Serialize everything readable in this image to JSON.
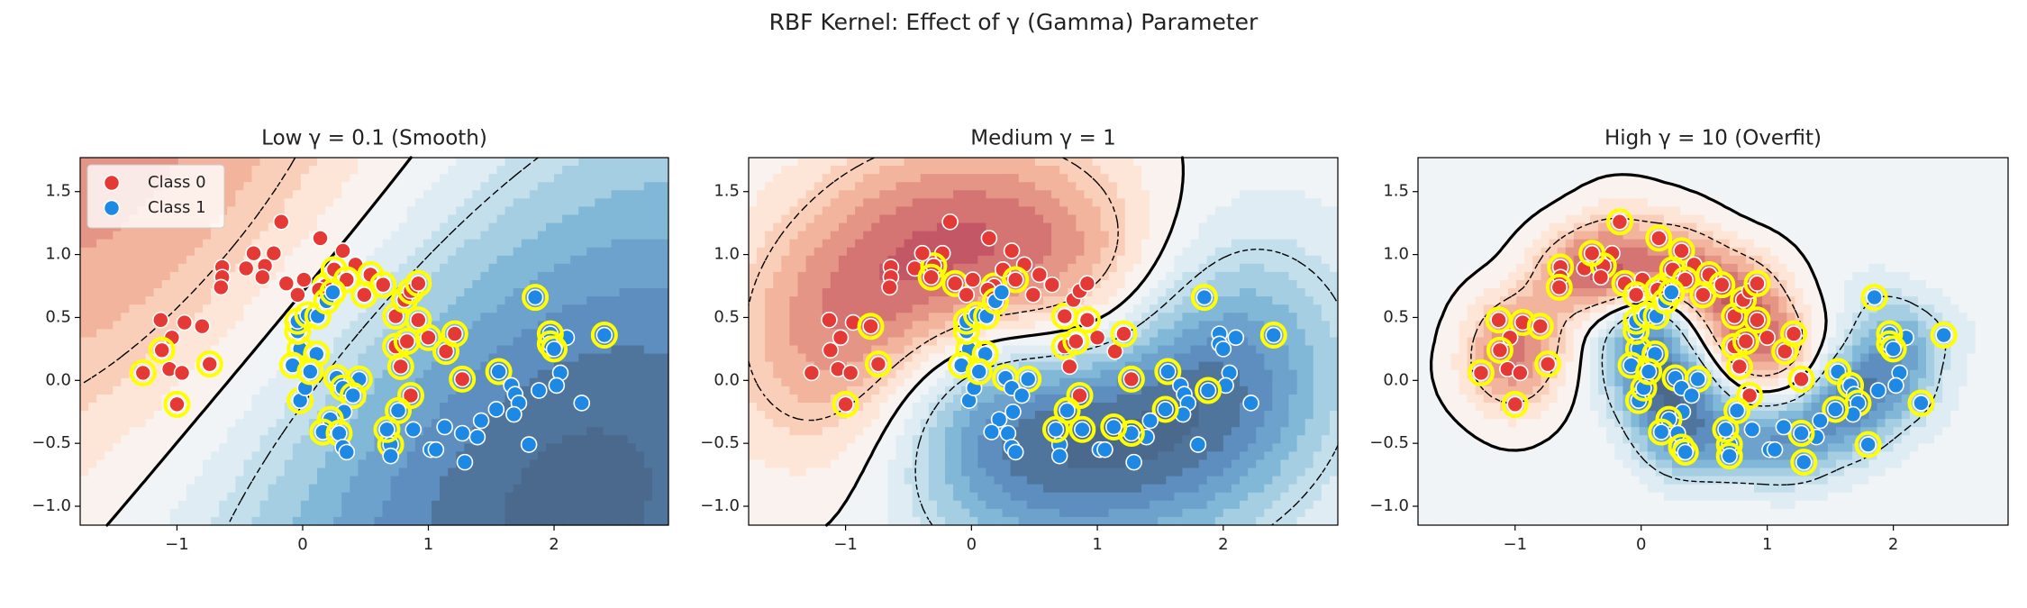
{
  "title": "RBF Kernel: Effect of γ (Gamma) Parameter",
  "chart_data": [
    {
      "type": "scatter",
      "title": "Low γ = 0.1 (Smooth)",
      "gamma": 0.1,
      "legend": "upper left",
      "xlim": [
        -1.77,
        2.91
      ],
      "ylim": [
        -1.15,
        1.77
      ],
      "xticks": [
        {
          "value": -1,
          "label": "−1"
        },
        {
          "value": 0,
          "label": "0"
        },
        {
          "value": 1,
          "label": "1"
        },
        {
          "value": 2,
          "label": "2"
        }
      ],
      "yticks": [
        {
          "value": -1.0,
          "label": "−1.0"
        },
        {
          "value": -0.5,
          "label": "−0.5"
        },
        {
          "value": 0.0,
          "label": "0.0"
        },
        {
          "value": 0.5,
          "label": "0.5"
        },
        {
          "value": 1.0,
          "label": "1.0"
        },
        {
          "value": 1.5,
          "label": "1.5"
        }
      ],
      "series": [
        {
          "name": "Class 0",
          "color": "#e53935",
          "x": [
            -0.17,
            0.14,
            -0.23,
            0.32,
            -0.64,
            -0.64,
            -0.65,
            -0.45,
            -0.3,
            -0.32,
            -0.13,
            0.01,
            0.18,
            0.25,
            0.42,
            0.54,
            0.49,
            0.35,
            0.13,
            -1.13,
            -0.94,
            -0.8,
            -1.04,
            -1.12,
            -1.06,
            -1.27,
            -0.96,
            -1.0,
            -0.74,
            0.74,
            0.81,
            0.86,
            0.74,
            0.83,
            1.0,
            1.14,
            1.21,
            0.86,
            1.27,
            0.78,
            -0.39,
            -0.04,
            0.92,
            0.92,
            0.64
          ],
          "values": [
            1.26,
            1.13,
            1.01,
            1.03,
            0.9,
            0.82,
            0.74,
            0.89,
            0.91,
            0.82,
            0.77,
            0.8,
            0.75,
            0.88,
            0.92,
            0.84,
            0.68,
            0.8,
            0.72,
            0.48,
            0.46,
            0.43,
            0.34,
            0.24,
            0.09,
            0.06,
            0.06,
            -0.19,
            0.13,
            0.51,
            0.64,
            0.71,
            0.27,
            0.31,
            0.34,
            0.23,
            0.37,
            -0.12,
            0.01,
            0.11,
            1.01,
            0.68,
            0.77,
            0.48,
            0.76
          ],
          "support": [
            false,
            false,
            false,
            false,
            false,
            false,
            false,
            false,
            false,
            false,
            false,
            false,
            true,
            true,
            false,
            true,
            true,
            true,
            false,
            false,
            false,
            false,
            false,
            true,
            false,
            true,
            false,
            true,
            true,
            true,
            true,
            true,
            true,
            true,
            true,
            true,
            true,
            true,
            true,
            true,
            false,
            false,
            true,
            true,
            true
          ]
        },
        {
          "name": "Class 1",
          "color": "#1e88e5",
          "x": [
            1.85,
            2.4,
            2.1,
            1.97,
            1.97,
            2.0,
            1.56,
            1.66,
            1.69,
            1.72,
            1.68,
            2.05,
            2.02,
            2.22,
            1.88,
            1.8,
            1.54,
            1.42,
            1.39,
            1.27,
            1.13,
            1.29,
            1.02,
            1.06,
            0.88,
            0.7,
            0.7,
            0.67,
            0.76,
            0.45,
            0.27,
            0.32,
            0.4,
            0.33,
            0.22,
            0.16,
            0.29,
            0.32,
            0.35,
            -0.02,
            0.02,
            -0.02,
            -0.04,
            -0.04,
            0.04,
            -0.08,
            0.12,
            0.19,
            0.24,
            0.11,
            0.06
          ],
          "values": [
            0.66,
            0.36,
            0.34,
            0.37,
            0.29,
            0.25,
            0.07,
            -0.04,
            -0.11,
            -0.18,
            -0.27,
            0.06,
            -0.04,
            -0.18,
            -0.08,
            -0.51,
            -0.23,
            -0.32,
            -0.45,
            -0.42,
            -0.37,
            -0.65,
            -0.55,
            -0.55,
            -0.39,
            -0.51,
            -0.6,
            -0.39,
            -0.24,
            0.01,
            0.02,
            -0.06,
            -0.12,
            -0.25,
            -0.31,
            -0.41,
            -0.42,
            -0.53,
            -0.57,
            -0.16,
            -0.06,
            0.25,
            0.39,
            0.47,
            0.52,
            0.12,
            0.51,
            0.63,
            0.7,
            0.21,
            0.07
          ],
          "support": [
            true,
            true,
            false,
            true,
            true,
            true,
            true,
            false,
            false,
            false,
            false,
            false,
            false,
            false,
            false,
            false,
            false,
            false,
            false,
            false,
            false,
            false,
            false,
            false,
            false,
            true,
            false,
            true,
            true,
            true,
            true,
            true,
            true,
            false,
            true,
            true,
            true,
            false,
            false,
            true,
            false,
            true,
            true,
            true,
            true,
            true,
            true,
            true,
            true,
            true,
            true
          ]
        }
      ]
    },
    {
      "type": "scatter",
      "title": "Medium γ = 1",
      "gamma": 1,
      "xlim": [
        -1.77,
        2.91
      ],
      "ylim": [
        -1.15,
        1.77
      ],
      "xticks": [
        {
          "value": -1,
          "label": "−1"
        },
        {
          "value": 0,
          "label": "0"
        },
        {
          "value": 1,
          "label": "1"
        },
        {
          "value": 2,
          "label": "2"
        }
      ],
      "yticks": [
        {
          "value": -1.0,
          "label": "−1.0"
        },
        {
          "value": -0.5,
          "label": "−0.5"
        },
        {
          "value": 0.0,
          "label": "0.0"
        },
        {
          "value": 0.5,
          "label": "0.5"
        },
        {
          "value": 1.0,
          "label": "1.0"
        },
        {
          "value": 1.5,
          "label": "1.5"
        }
      ],
      "series": [
        {
          "color": "#e53935",
          "x": [
            -0.17,
            0.14,
            -0.23,
            0.32,
            -0.64,
            -0.64,
            -0.65,
            -0.45,
            -0.3,
            -0.32,
            -0.13,
            0.01,
            0.18,
            0.25,
            0.42,
            0.54,
            0.49,
            0.35,
            0.13,
            -1.13,
            -0.94,
            -0.8,
            -1.04,
            -1.12,
            -1.06,
            -1.27,
            -0.96,
            -1.0,
            -0.74,
            0.74,
            0.81,
            0.86,
            0.74,
            0.83,
            1.0,
            1.14,
            1.21,
            0.86,
            1.27,
            0.78,
            -0.39,
            -0.04,
            0.92,
            0.92,
            0.64
          ],
          "values": [
            1.26,
            1.13,
            1.01,
            1.03,
            0.9,
            0.82,
            0.74,
            0.89,
            0.91,
            0.82,
            0.77,
            0.8,
            0.75,
            0.88,
            0.92,
            0.84,
            0.68,
            0.8,
            0.72,
            0.48,
            0.46,
            0.43,
            0.34,
            0.24,
            0.09,
            0.06,
            0.06,
            -0.19,
            0.13,
            0.51,
            0.64,
            0.71,
            0.27,
            0.31,
            0.34,
            0.23,
            0.37,
            -0.12,
            0.01,
            0.11,
            1.01,
            0.68,
            0.77,
            0.48,
            0.76
          ],
          "support": [
            false,
            false,
            false,
            false,
            false,
            false,
            false,
            false,
            true,
            true,
            true,
            false,
            true,
            false,
            false,
            false,
            false,
            true,
            false,
            false,
            false,
            true,
            false,
            false,
            false,
            false,
            false,
            true,
            true,
            true,
            false,
            false,
            true,
            true,
            false,
            false,
            true,
            true,
            true,
            false,
            false,
            false,
            false,
            true,
            false
          ]
        },
        {
          "color": "#1e88e5",
          "x": [
            1.85,
            2.4,
            2.1,
            1.97,
            1.97,
            2.0,
            1.56,
            1.66,
            1.69,
            1.72,
            1.68,
            2.05,
            2.02,
            2.22,
            1.88,
            1.8,
            1.54,
            1.42,
            1.39,
            1.27,
            1.13,
            1.29,
            1.02,
            1.06,
            0.88,
            0.7,
            0.7,
            0.67,
            0.76,
            0.45,
            0.27,
            0.32,
            0.4,
            0.33,
            0.22,
            0.16,
            0.29,
            0.32,
            0.35,
            -0.02,
            0.02,
            -0.02,
            -0.04,
            -0.04,
            0.04,
            -0.08,
            0.12,
            0.19,
            0.24,
            0.11,
            0.06
          ],
          "values": [
            0.66,
            0.36,
            0.34,
            0.37,
            0.29,
            0.25,
            0.07,
            -0.04,
            -0.11,
            -0.18,
            -0.27,
            0.06,
            -0.04,
            -0.18,
            -0.08,
            -0.51,
            -0.23,
            -0.32,
            -0.45,
            -0.42,
            -0.37,
            -0.65,
            -0.55,
            -0.55,
            -0.39,
            -0.51,
            -0.6,
            -0.39,
            -0.24,
            0.01,
            0.02,
            -0.06,
            -0.12,
            -0.25,
            -0.31,
            -0.41,
            -0.42,
            -0.53,
            -0.57,
            -0.16,
            -0.06,
            0.25,
            0.39,
            0.47,
            0.52,
            0.12,
            0.51,
            0.63,
            0.7,
            0.21,
            0.07
          ],
          "support": [
            true,
            true,
            false,
            false,
            false,
            false,
            true,
            false,
            false,
            false,
            false,
            false,
            false,
            false,
            true,
            false,
            true,
            false,
            false,
            true,
            true,
            false,
            false,
            false,
            true,
            false,
            false,
            true,
            true,
            true,
            true,
            false,
            false,
            false,
            false,
            false,
            false,
            false,
            false,
            false,
            false,
            true,
            true,
            true,
            true,
            true,
            true,
            true,
            false,
            true,
            true
          ]
        }
      ]
    },
    {
      "type": "scatter",
      "title": "High γ = 10 (Overfit)",
      "gamma": 10,
      "xlim": [
        -1.77,
        2.91
      ],
      "ylim": [
        -1.15,
        1.77
      ],
      "xticks": [
        {
          "value": -1,
          "label": "−1"
        },
        {
          "value": 0,
          "label": "0"
        },
        {
          "value": 1,
          "label": "1"
        },
        {
          "value": 2,
          "label": "2"
        }
      ],
      "yticks": [
        {
          "value": -1.0,
          "label": "−1.0"
        },
        {
          "value": -0.5,
          "label": "−0.5"
        },
        {
          "value": 0.0,
          "label": "0.0"
        },
        {
          "value": 0.5,
          "label": "0.5"
        },
        {
          "value": 1.0,
          "label": "1.0"
        },
        {
          "value": 1.5,
          "label": "1.5"
        }
      ],
      "series": [
        {
          "color": "#e53935",
          "x": [
            -0.17,
            0.14,
            -0.23,
            0.32,
            -0.64,
            -0.64,
            -0.65,
            -0.45,
            -0.3,
            -0.32,
            -0.13,
            0.01,
            0.18,
            0.25,
            0.42,
            0.54,
            0.49,
            0.35,
            0.13,
            -1.13,
            -0.94,
            -0.8,
            -1.04,
            -1.12,
            -1.06,
            -1.27,
            -0.96,
            -1.0,
            -0.74,
            0.74,
            0.81,
            0.86,
            0.74,
            0.83,
            1.0,
            1.14,
            1.21,
            0.86,
            1.27,
            0.78,
            -0.39,
            -0.04,
            0.92,
            0.92,
            0.64
          ],
          "values": [
            1.26,
            1.13,
            1.01,
            1.03,
            0.9,
            0.82,
            0.74,
            0.89,
            0.91,
            0.82,
            0.77,
            0.8,
            0.75,
            0.88,
            0.92,
            0.84,
            0.68,
            0.8,
            0.72,
            0.48,
            0.46,
            0.43,
            0.34,
            0.24,
            0.09,
            0.06,
            0.06,
            -0.19,
            0.13,
            0.51,
            0.64,
            0.71,
            0.27,
            0.31,
            0.34,
            0.23,
            0.37,
            -0.12,
            0.01,
            0.11,
            1.01,
            0.68,
            0.77,
            0.48,
            0.76
          ],
          "support": [
            true,
            true,
            false,
            true,
            true,
            false,
            true,
            false,
            true,
            false,
            true,
            false,
            true,
            true,
            false,
            true,
            true,
            true,
            true,
            true,
            true,
            true,
            false,
            true,
            false,
            true,
            false,
            true,
            true,
            true,
            true,
            false,
            true,
            true,
            false,
            true,
            true,
            true,
            true,
            true,
            true,
            true,
            true,
            true,
            true
          ]
        },
        {
          "color": "#1e88e5",
          "x": [
            1.85,
            2.4,
            2.1,
            1.97,
            1.97,
            2.0,
            1.56,
            1.66,
            1.69,
            1.72,
            1.68,
            2.05,
            2.02,
            2.22,
            1.88,
            1.8,
            1.54,
            1.42,
            1.39,
            1.27,
            1.13,
            1.29,
            1.02,
            1.06,
            0.88,
            0.7,
            0.7,
            0.67,
            0.76,
            0.45,
            0.27,
            0.32,
            0.4,
            0.33,
            0.22,
            0.16,
            0.29,
            0.32,
            0.35,
            -0.02,
            0.02,
            -0.02,
            -0.04,
            -0.04,
            0.04,
            -0.08,
            0.12,
            0.19,
            0.24,
            0.11,
            0.06
          ],
          "values": [
            0.66,
            0.36,
            0.34,
            0.37,
            0.29,
            0.25,
            0.07,
            -0.04,
            -0.11,
            -0.18,
            -0.27,
            0.06,
            -0.04,
            -0.18,
            -0.08,
            -0.51,
            -0.23,
            -0.32,
            -0.45,
            -0.42,
            -0.37,
            -0.65,
            -0.55,
            -0.55,
            -0.39,
            -0.51,
            -0.6,
            -0.39,
            -0.24,
            0.01,
            0.02,
            -0.06,
            -0.12,
            -0.25,
            -0.31,
            -0.41,
            -0.42,
            -0.53,
            -0.57,
            -0.16,
            -0.06,
            0.25,
            0.39,
            0.47,
            0.52,
            0.12,
            0.51,
            0.63,
            0.7,
            0.21,
            0.07
          ],
          "support": [
            true,
            true,
            false,
            true,
            true,
            true,
            true,
            true,
            false,
            true,
            false,
            false,
            false,
            true,
            false,
            true,
            true,
            false,
            false,
            true,
            false,
            true,
            false,
            false,
            false,
            true,
            true,
            true,
            true,
            true,
            true,
            false,
            false,
            false,
            true,
            true,
            false,
            true,
            true,
            true,
            true,
            true,
            true,
            true,
            true,
            true,
            true,
            true,
            true,
            true,
            true
          ]
        }
      ]
    }
  ]
}
